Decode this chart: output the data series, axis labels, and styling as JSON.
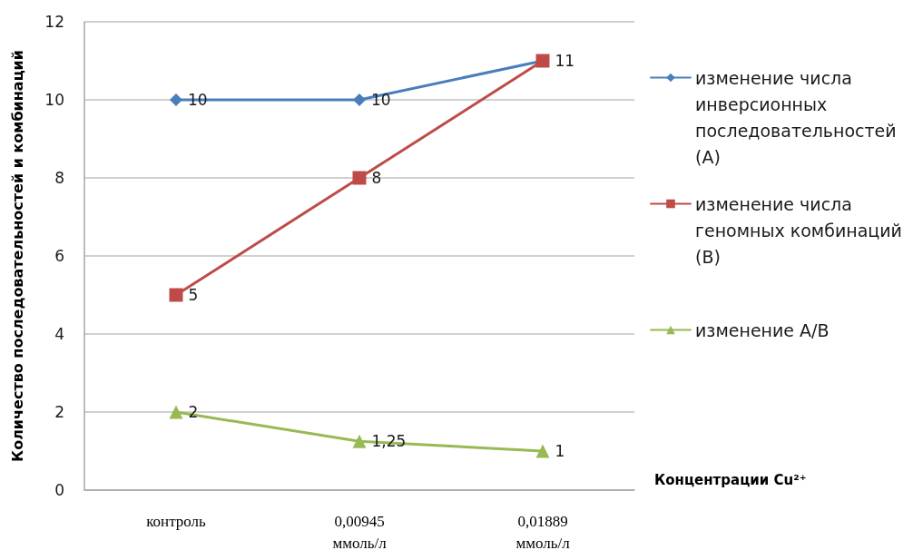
{
  "chart_data": {
    "type": "line",
    "ylabel": "Количество последовательностей и комбинаций",
    "xlabel": "Концентрации Cu²⁺",
    "categories": [
      "контроль",
      "0,00945 ммоль/л",
      "0,01889 ммоль/л"
    ],
    "series": [
      {
        "name": "изменение числа инверсионных последовательностей (А)",
        "color": "#4a7ebb",
        "marker": "diamond",
        "values": [
          10,
          10,
          11
        ],
        "value_labels": [
          "10",
          "10",
          null
        ]
      },
      {
        "name": "изменение числа геномных комбинаций (В)",
        "color": "#be4b48",
        "marker": "square",
        "values": [
          5,
          8,
          11
        ],
        "value_labels": [
          "5",
          "8",
          "11"
        ]
      },
      {
        "name": "изменение А/В",
        "color": "#98b954",
        "marker": "triangle",
        "values": [
          2,
          1.25,
          1
        ],
        "value_labels": [
          "2",
          "1,25",
          "1"
        ]
      }
    ],
    "ylim": [
      0,
      12
    ],
    "yticks": [
      0,
      2,
      4,
      6,
      8,
      10,
      12
    ],
    "grid": "y",
    "legend": "right"
  }
}
